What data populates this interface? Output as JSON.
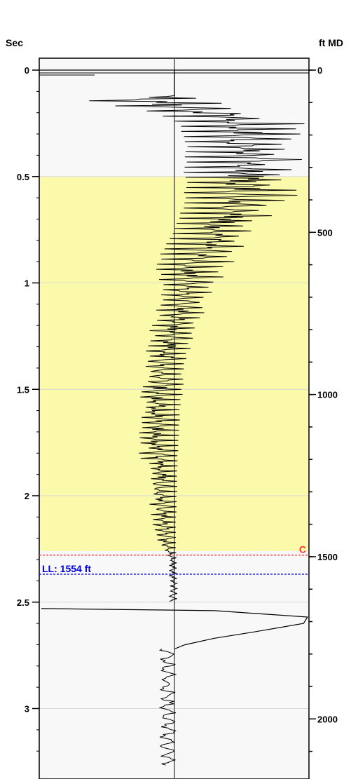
{
  "chart_data": {
    "type": "line",
    "left_axis": {
      "title": "Sec",
      "ylim": [
        0,
        3.27
      ],
      "ticks": [
        0,
        0.5,
        1,
        1.5,
        2,
        2.5,
        3
      ],
      "tick_labels": [
        "0",
        "0.5",
        "1",
        "1.5",
        "2",
        "2.5",
        "3"
      ],
      "minor_step": 0.1
    },
    "right_axis": {
      "title": "ft MD",
      "ylim": [
        0,
        2183
      ],
      "ticks": [
        0,
        500,
        1000,
        1500,
        2000
      ],
      "tick_labels": [
        "0",
        "500",
        "1000",
        "1500",
        "2000"
      ],
      "minor_step": 100
    },
    "grid": true,
    "bands": [
      {
        "from_sec": 0.5,
        "to_sec": 2.26,
        "color": "#fafaaa"
      }
    ],
    "background_color": "#f8f8f8",
    "center_line": true,
    "markers": [
      {
        "label": "C",
        "depth_ft": 1495,
        "color": "#ff3333",
        "label_side": "right"
      },
      {
        "label": "LL: 1554 ft",
        "depth_ft": 1554,
        "color": "#0000ee",
        "label_side": "left"
      }
    ],
    "series": [
      {
        "style": "spiky",
        "color": "#000000",
        "envelope": [
          {
            "sec": 0.0,
            "left": 0,
            "right": 0
          },
          {
            "sec": 0.12,
            "left": 0,
            "right": 0
          },
          {
            "sec": 0.14,
            "left": -0.95,
            "right": 0.35
          },
          {
            "sec": 0.18,
            "left": -0.3,
            "right": 0.55
          },
          {
            "sec": 0.25,
            "left": 0.05,
            "right": 0.98
          },
          {
            "sec": 0.35,
            "left": 0.1,
            "right": 0.98
          },
          {
            "sec": 0.5,
            "left": 0.1,
            "right": 0.95
          },
          {
            "sec": 0.62,
            "left": 0.1,
            "right": 0.98
          },
          {
            "sec": 0.75,
            "left": 0.0,
            "right": 0.6
          },
          {
            "sec": 0.9,
            "left": -0.15,
            "right": 0.45
          },
          {
            "sec": 1.05,
            "left": -0.1,
            "right": 0.3
          },
          {
            "sec": 1.2,
            "left": -0.18,
            "right": 0.18
          },
          {
            "sec": 1.4,
            "left": -0.25,
            "right": 0.08
          },
          {
            "sec": 1.6,
            "left": -0.3,
            "right": 0.05
          },
          {
            "sec": 1.8,
            "left": -0.27,
            "right": 0.03
          },
          {
            "sec": 2.0,
            "left": -0.2,
            "right": 0.02
          },
          {
            "sec": 2.2,
            "left": -0.15,
            "right": 0.01
          },
          {
            "sec": 2.3,
            "left": -0.04,
            "right": 0.02
          },
          {
            "sec": 2.5,
            "left": -0.04,
            "right": 0.02
          }
        ]
      },
      {
        "style": "curve",
        "color": "#000000",
        "points": [
          {
            "sec": 2.53,
            "val": -1.0
          },
          {
            "sec": 2.54,
            "val": 0.3
          },
          {
            "sec": 2.57,
            "val": 1.0
          },
          {
            "sec": 2.6,
            "val": 0.97
          },
          {
            "sec": 2.64,
            "val": 0.6
          },
          {
            "sec": 2.67,
            "val": 0.3
          },
          {
            "sec": 2.7,
            "val": 0.08
          },
          {
            "sec": 2.72,
            "val": 0.0
          }
        ]
      },
      {
        "style": "wiggle",
        "color": "#000000",
        "from_sec": 2.72,
        "to_sec": 3.27,
        "center": -0.05,
        "amplitude": 0.06
      }
    ]
  }
}
